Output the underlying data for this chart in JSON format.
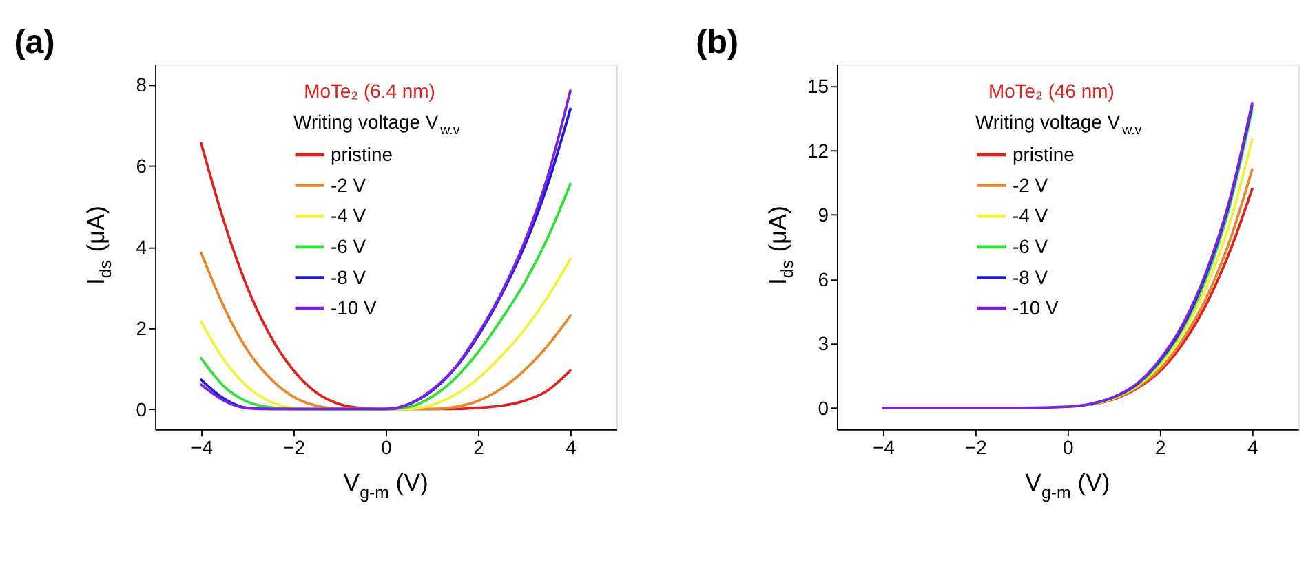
{
  "chart_data": [
    {
      "type": "line",
      "title": "(a)",
      "xlabel": "V$_{g-m}$ (V)",
      "ylabel": "I$_{ds}$ (μA)",
      "legend_title": "Writing voltage V$_{w.v}$",
      "annotations": [
        "MoTe₂ (6.4 nm)"
      ],
      "legend": "top left",
      "grid": false,
      "line_style": "solid",
      "marker": "none",
      "x": [
        -4,
        -3.5,
        -3,
        -2.5,
        -2,
        -1.5,
        -1,
        -0.5,
        0,
        0.5,
        1,
        1.5,
        2,
        2.5,
        3,
        3.5,
        4
      ],
      "xlim": [
        -5,
        5
      ],
      "xticks": [
        -4,
        -2,
        0,
        2,
        4
      ],
      "ylim": [
        -0.5,
        8.5
      ],
      "yticks": [
        0,
        2,
        4,
        6,
        8
      ],
      "series": [
        {
          "name": "pristine",
          "color": "#e0201b",
          "values": [
            6.55,
            4.6,
            3.0,
            1.8,
            0.95,
            0.4,
            0.12,
            0.02,
            0,
            0,
            0,
            0,
            0.03,
            0.08,
            0.2,
            0.45,
            0.95
          ]
        },
        {
          "name": "-2 V",
          "color": "#e8862a",
          "values": [
            3.85,
            2.5,
            1.45,
            0.75,
            0.3,
            0.08,
            0.01,
            0,
            0,
            0,
            0,
            0.05,
            0.2,
            0.5,
            0.95,
            1.55,
            2.3
          ]
        },
        {
          "name": "-4 V",
          "color": "#f5f03a",
          "values": [
            2.15,
            1.2,
            0.55,
            0.18,
            0.03,
            0,
            0,
            0,
            0,
            0,
            0.1,
            0.35,
            0.75,
            1.3,
            1.95,
            2.75,
            3.7
          ]
        },
        {
          "name": "-6 V",
          "color": "#33e03a",
          "values": [
            1.25,
            0.55,
            0.18,
            0.04,
            0,
            0,
            0,
            0,
            0,
            0.05,
            0.3,
            0.75,
            1.4,
            2.2,
            3.1,
            4.2,
            5.55
          ]
        },
        {
          "name": "-8 V",
          "color": "#1a1adb",
          "values": [
            0.72,
            0.25,
            0.03,
            0,
            0,
            0,
            0,
            0,
            0,
            0.12,
            0.45,
            1.0,
            1.8,
            2.8,
            4.0,
            5.5,
            7.4
          ]
        },
        {
          "name": "-10 V",
          "color": "#7b22e0",
          "values": [
            0.6,
            0.2,
            0.02,
            0,
            0,
            0,
            0,
            0,
            0,
            0.12,
            0.47,
            1.02,
            1.85,
            2.85,
            4.1,
            5.7,
            7.85
          ]
        }
      ]
    },
    {
      "type": "line",
      "title": "(b)",
      "xlabel": "V$_{g-m}$ (V)",
      "ylabel": "I$_{ds}$ (μA)",
      "legend_title": "Writing voltage V$_{w.v}$",
      "annotations": [
        "MoTe₂ (46 nm)"
      ],
      "legend": "top left",
      "grid": false,
      "line_style": "solid",
      "marker": "none",
      "x": [
        -4,
        -2,
        -1,
        0,
        0.5,
        1,
        1.5,
        2,
        2.5,
        3,
        3.5,
        4
      ],
      "xlim": [
        -5,
        5
      ],
      "xticks": [
        -4,
        -2,
        0,
        2,
        4
      ],
      "ylim": [
        -1,
        16
      ],
      "yticks": [
        0,
        3,
        6,
        9,
        12,
        15
      ],
      "series": [
        {
          "name": "pristine",
          "color": "#e0201b",
          "values": [
            null,
            null,
            null,
            null,
            0.15,
            0.4,
            0.9,
            1.7,
            3.0,
            4.8,
            7.2,
            10.2
          ]
        },
        {
          "name": "-2 V",
          "color": "#e8862a",
          "values": [
            null,
            null,
            null,
            null,
            0.15,
            0.42,
            0.95,
            1.8,
            3.2,
            5.1,
            7.7,
            11.1
          ]
        },
        {
          "name": "-4 V",
          "color": "#f5f03a",
          "values": [
            null,
            null,
            null,
            null,
            0.16,
            0.45,
            1.0,
            2.0,
            3.5,
            5.6,
            8.5,
            12.5
          ]
        },
        {
          "name": "-6 V",
          "color": "#33e03a",
          "values": [
            null,
            null,
            null,
            null,
            0.17,
            0.48,
            1.06,
            2.12,
            3.7,
            6.0,
            9.3,
            13.9
          ]
        },
        {
          "name": "-8 V",
          "color": "#1a1adb",
          "values": [
            null,
            null,
            null,
            null,
            0.18,
            0.5,
            1.1,
            2.2,
            3.8,
            6.2,
            9.5,
            14.1
          ]
        },
        {
          "name": "-10 V",
          "color": "#7b22e0",
          "values": [
            0,
            0,
            0,
            0.05,
            0.18,
            0.5,
            1.12,
            2.25,
            3.9,
            6.3,
            9.6,
            14.2
          ]
        }
      ]
    }
  ]
}
